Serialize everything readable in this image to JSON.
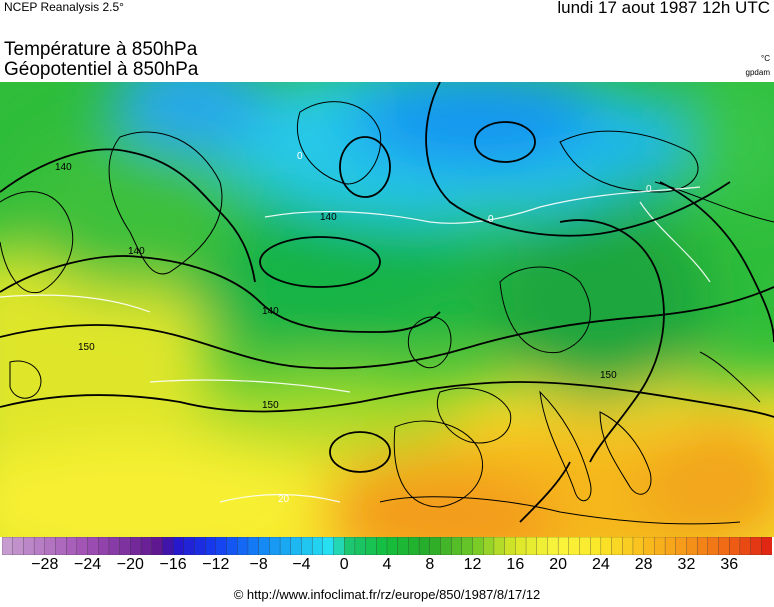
{
  "header": {
    "source": "NCEP Reanalysis 2.5°",
    "date": "lundi 17 aout 1987 12h UTC"
  },
  "titles": {
    "line1": "Température à 850hPa",
    "line2": "Géopotentiel à 850hPa"
  },
  "units": {
    "temperature": "°C",
    "geopotential": "gpdam"
  },
  "colorbar": {
    "min": -32,
    "max": 40,
    "step": 1,
    "tick_labels": [
      "−28",
      "−24",
      "−20",
      "−16",
      "−12",
      "−8",
      "−4",
      "0",
      "4",
      "8",
      "12",
      "16",
      "20",
      "24",
      "28",
      "32",
      "36"
    ],
    "tick_values": [
      -28,
      -24,
      -20,
      -16,
      -12,
      -8,
      -4,
      0,
      4,
      8,
      12,
      16,
      20,
      24,
      28,
      32,
      36
    ]
  },
  "map": {
    "region": "Europe / North Atlantic",
    "contour_labels": [
      {
        "text": "140",
        "kind": "geopotential"
      },
      {
        "text": "140",
        "kind": "geopotential"
      },
      {
        "text": "140",
        "kind": "geopotential"
      },
      {
        "text": "140",
        "kind": "geopotential"
      },
      {
        "text": "150",
        "kind": "geopotential"
      },
      {
        "text": "150",
        "kind": "geopotential"
      },
      {
        "text": "150",
        "kind": "geopotential"
      },
      {
        "text": "0",
        "kind": "temperature"
      },
      {
        "text": "0",
        "kind": "temperature"
      },
      {
        "text": "0",
        "kind": "temperature"
      },
      {
        "text": "20",
        "kind": "temperature"
      }
    ]
  },
  "footer": {
    "copyright": "© http://www.infoclimat.fr/rz/europe/850/1987/8/17/12"
  }
}
